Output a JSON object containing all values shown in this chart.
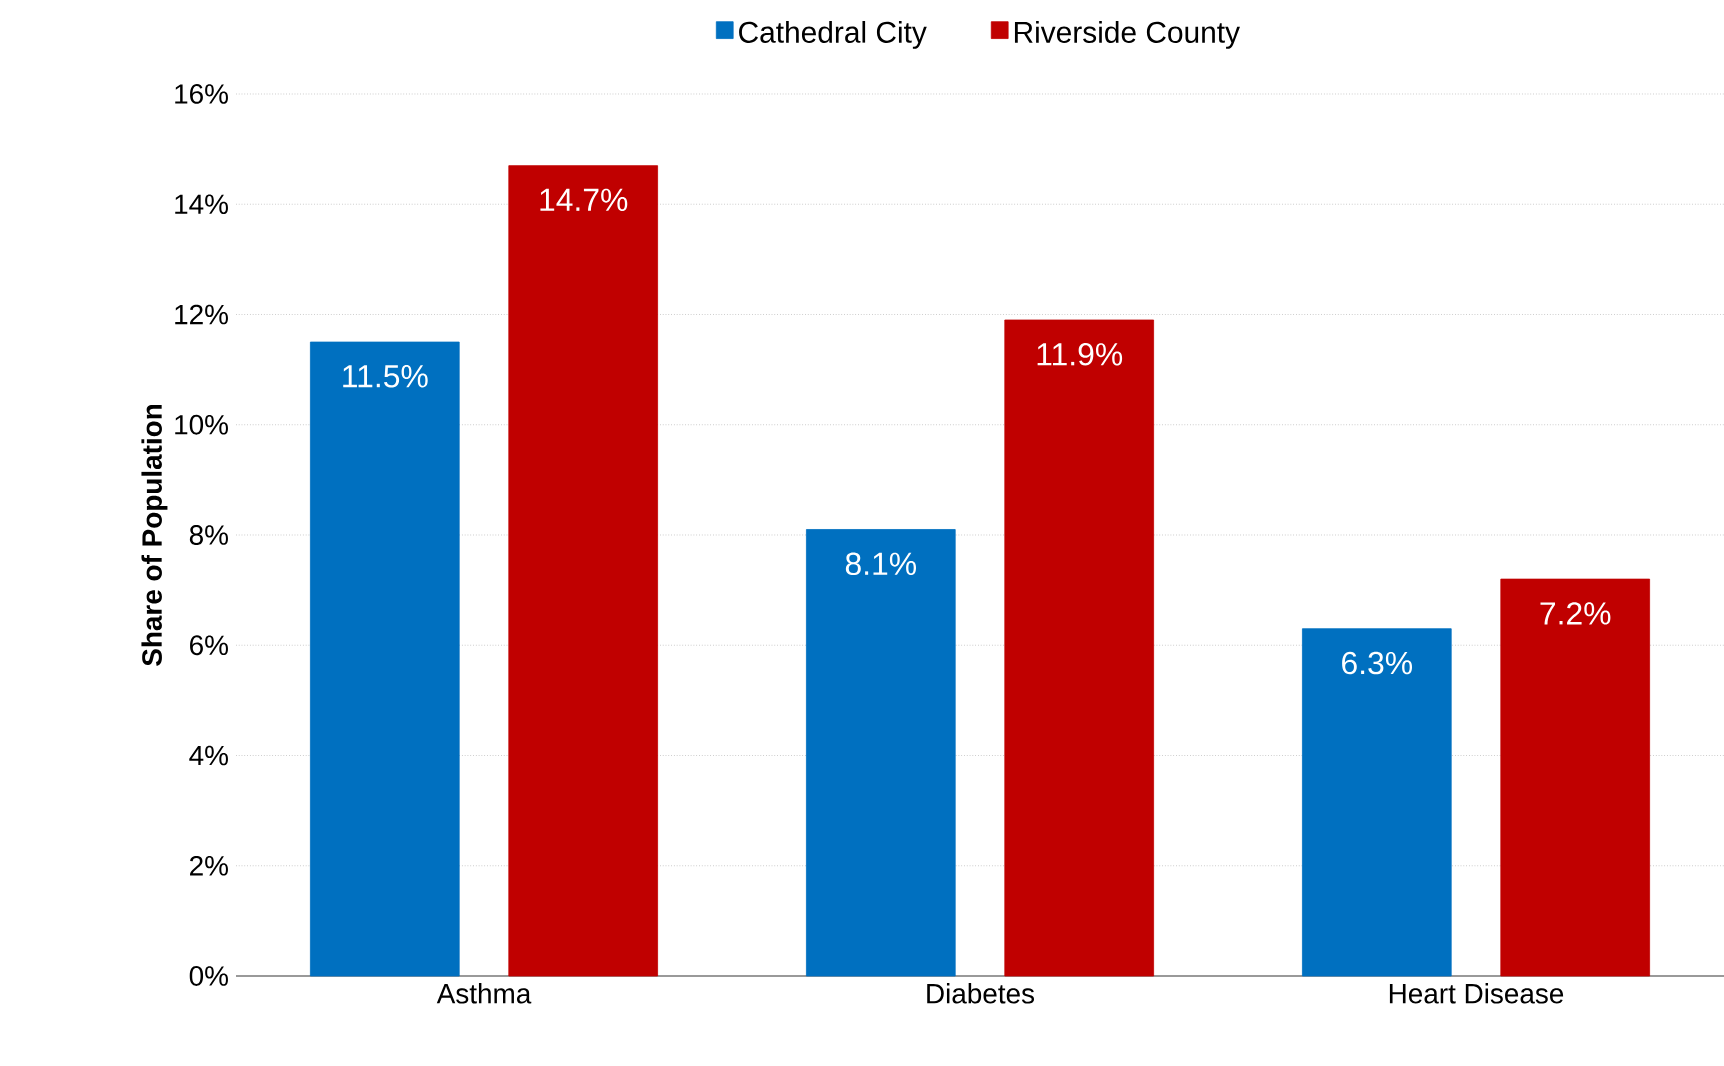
{
  "chart_data": {
    "type": "bar",
    "ylabel": "**Share of Population**",
    "categories": [
      "Asthma",
      "Diabetes",
      "Heart Disease"
    ],
    "series": [
      {
        "name": "Cathedral City",
        "color": "#0070c0",
        "values": [
          11.5,
          8.1,
          6.3
        ],
        "value_labels": [
          "11.5%",
          "8.1%",
          "6.3%"
        ]
      },
      {
        "name": "Riverside County",
        "color": "#c00000",
        "values": [
          14.7,
          11.9,
          7.2
        ],
        "value_labels": [
          "14.7%",
          "11.9%",
          "7.2%"
        ]
      }
    ],
    "ylim": [
      0,
      16
    ],
    "yticks": [
      {
        "value": 0,
        "label": "0%"
      },
      {
        "value": 2,
        "label": "2%"
      },
      {
        "value": 4,
        "label": "4%"
      },
      {
        "value": 6,
        "label": "6%"
      },
      {
        "value": 8,
        "label": "8%"
      },
      {
        "value": 10,
        "label": "10%"
      },
      {
        "value": 12,
        "label": "12%"
      },
      {
        "value": 14,
        "label": "14%"
      },
      {
        "value": 16,
        "label": "16%"
      }
    ],
    "grid": "y",
    "legend": "top"
  }
}
